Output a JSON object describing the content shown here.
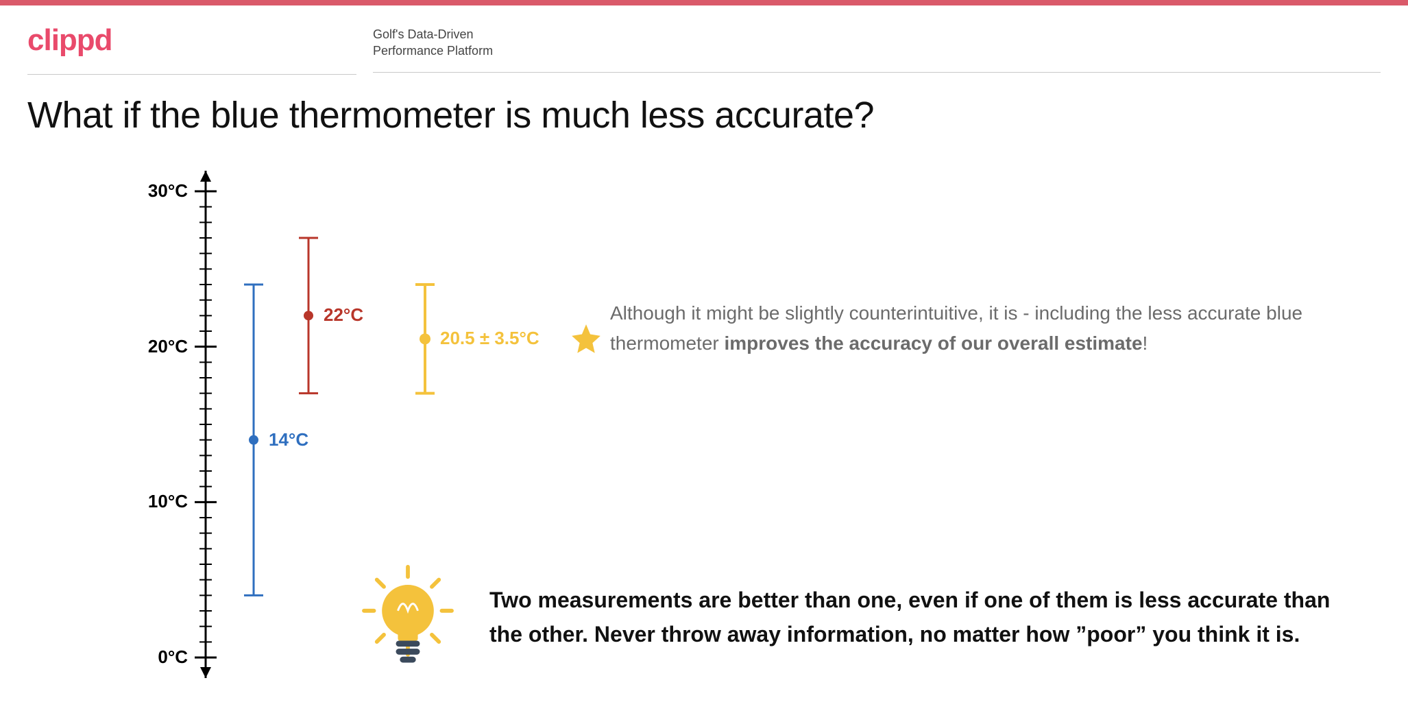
{
  "brand": {
    "logo_text": "clippd",
    "logo_color": "#e94a6b",
    "tagline_line1": "Golf's Data-Driven",
    "tagline_line2": "Performance Platform",
    "topbar_color": "#da5a6a"
  },
  "title": "What if the blue thermometer is much less accurate?",
  "chart": {
    "type": "error-bar",
    "background_color": "#ffffff",
    "axis_color": "#000000",
    "axis_stroke_width": 3,
    "y": {
      "min": 0,
      "max": 30,
      "tick_major_step": 10,
      "tick_minor_step": 1,
      "tick_labels": [
        "0°C",
        "10°C",
        "20°C",
        "30°C"
      ],
      "label_fontsize": 26,
      "label_fontweight": 700,
      "label_color": "#000000",
      "arrowheads": true
    },
    "series": [
      {
        "name": "blue",
        "x_offset": 70,
        "value": 14,
        "err_low": 4,
        "err_high": 24,
        "color": "#2f6fbf",
        "stroke_width": 3,
        "cap_width": 28,
        "marker_radius": 7,
        "label": "14°C",
        "label_color": "#2f6fbf"
      },
      {
        "name": "red",
        "x_offset": 150,
        "value": 22,
        "err_low": 17,
        "err_high": 27,
        "color": "#b8362a",
        "stroke_width": 3,
        "cap_width": 28,
        "marker_radius": 7,
        "label": "22°C",
        "label_color": "#b8362a"
      },
      {
        "name": "combined",
        "x_offset": 320,
        "value": 20.5,
        "err_low": 17,
        "err_high": 24,
        "color": "#f4c23c",
        "stroke_width": 4,
        "cap_width": 28,
        "marker_radius": 8,
        "label": "20.5 ± 3.5°C",
        "label_color": "#f4c23c"
      }
    ],
    "star": {
      "color": "#f4c23c",
      "size": 50
    }
  },
  "explain": {
    "prefix": "Although it might be slightly counterintuitive, it is - including the less accurate blue thermometer ",
    "bold": "improves the accuracy of our overall estimate",
    "suffix": "!"
  },
  "takeaway": "Two measurements are better than one, even if one of them is less accurate than the other. Never throw away information, no matter how ”poor” you think it is.",
  "icons": {
    "bulb_color": "#f4c23c",
    "bulb_base_color": "#3b4a5c",
    "bulb_ray_color": "#f4c23c"
  }
}
